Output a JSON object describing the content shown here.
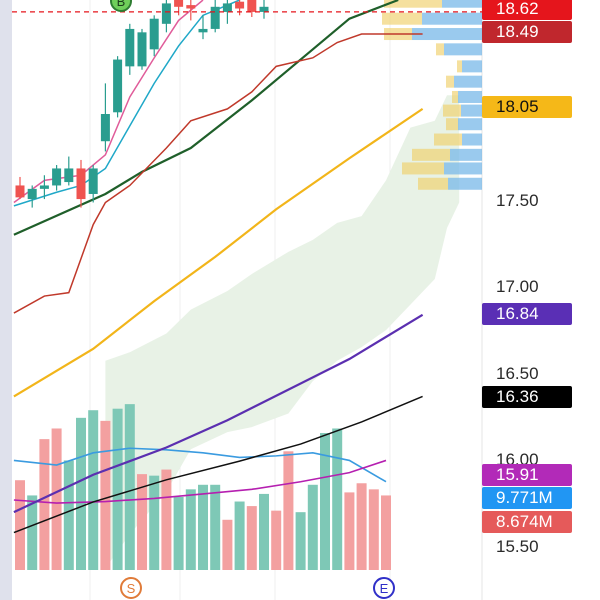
{
  "chart_data": {
    "type": "candlestick",
    "y_axis_side": "right",
    "ylim": [
      15.34,
      18.69
    ],
    "y_ticks": [
      "17.50",
      "17.00",
      "16.50",
      "16.00",
      "15.50"
    ],
    "candles": [
      {
        "o": 17.6,
        "h": 17.65,
        "l": 17.52,
        "c": 17.53
      },
      {
        "o": 17.52,
        "h": 17.6,
        "l": 17.47,
        "c": 17.58
      },
      {
        "o": 17.58,
        "h": 17.66,
        "l": 17.52,
        "c": 17.6
      },
      {
        "o": 17.6,
        "h": 17.72,
        "l": 17.57,
        "c": 17.7
      },
      {
        "o": 17.62,
        "h": 17.77,
        "l": 17.6,
        "c": 17.7
      },
      {
        "o": 17.7,
        "h": 17.75,
        "l": 17.47,
        "c": 17.52
      },
      {
        "o": 17.55,
        "h": 17.72,
        "l": 17.5,
        "c": 17.7
      },
      {
        "o": 17.86,
        "h": 18.2,
        "l": 17.8,
        "c": 18.02
      },
      {
        "o": 18.03,
        "h": 18.36,
        "l": 18.0,
        "c": 18.34
      },
      {
        "o": 18.3,
        "h": 18.55,
        "l": 18.25,
        "c": 18.52
      },
      {
        "o": 18.3,
        "h": 18.52,
        "l": 18.28,
        "c": 18.5
      },
      {
        "o": 18.4,
        "h": 18.6,
        "l": 18.36,
        "c": 18.58
      },
      {
        "o": 18.55,
        "h": 18.69,
        "l": 18.5,
        "c": 18.67
      },
      {
        "o": 18.69,
        "h": 18.69,
        "l": 18.6,
        "c": 18.65
      },
      {
        "o": 18.66,
        "h": 18.69,
        "l": 18.57,
        "c": 18.64
      },
      {
        "o": 18.5,
        "h": 18.6,
        "l": 18.46,
        "c": 18.52
      },
      {
        "o": 18.52,
        "h": 18.69,
        "l": 18.5,
        "c": 18.65
      },
      {
        "o": 18.62,
        "h": 18.69,
        "l": 18.55,
        "c": 18.67
      },
      {
        "o": 18.68,
        "h": 18.69,
        "l": 18.6,
        "c": 18.64
      },
      {
        "o": 18.69,
        "h": 18.69,
        "l": 18.59,
        "c": 18.62
      },
      {
        "o": 18.62,
        "h": 18.69,
        "l": 18.58,
        "c": 18.65
      }
    ],
    "volume": {
      "vmax": 11.5,
      "values": [
        {
          "v": 5.9,
          "up": false
        },
        {
          "v": 4.9,
          "up": true
        },
        {
          "v": 8.6,
          "up": false
        },
        {
          "v": 9.3,
          "up": false
        },
        {
          "v": 7.2,
          "up": true
        },
        {
          "v": 10.0,
          "up": true
        },
        {
          "v": 10.5,
          "up": true
        },
        {
          "v": 9.8,
          "up": false
        },
        {
          "v": 10.6,
          "up": true
        },
        {
          "v": 10.9,
          "up": true
        },
        {
          "v": 6.3,
          "up": false
        },
        {
          "v": 6.2,
          "up": true
        },
        {
          "v": 6.6,
          "up": false
        },
        {
          "v": 4.8,
          "up": true
        },
        {
          "v": 5.3,
          "up": true
        },
        {
          "v": 5.6,
          "up": true
        },
        {
          "v": 5.6,
          "up": true
        },
        {
          "v": 3.3,
          "up": false
        },
        {
          "v": 4.5,
          "up": true
        },
        {
          "v": 4.2,
          "up": false
        },
        {
          "v": 5.0,
          "up": true
        },
        {
          "v": 3.9,
          "up": false
        },
        {
          "v": 7.8,
          "up": false
        },
        {
          "v": 3.8,
          "up": true
        },
        {
          "v": 5.6,
          "up": true
        },
        {
          "v": 9.0,
          "up": true
        },
        {
          "v": 9.3,
          "up": true
        },
        {
          "v": 5.1,
          "up": false
        },
        {
          "v": 5.7,
          "up": false
        },
        {
          "v": 5.3,
          "up": false
        },
        {
          "v": 4.9,
          "up": false
        }
      ]
    },
    "lines": [
      {
        "color": "#1f5f2a",
        "points": [
          [
            -0.5,
            17.31
          ],
          [
            7,
            17.55
          ],
          [
            10,
            17.68
          ],
          [
            14,
            17.82
          ],
          [
            19,
            18.1
          ],
          [
            23,
            18.34
          ],
          [
            27,
            18.58
          ],
          [
            31,
            18.69
          ]
        ]
      },
      {
        "color": "#f2b51a",
        "points": [
          [
            -0.5,
            16.36
          ],
          [
            6,
            16.64
          ],
          [
            11,
            16.92
          ],
          [
            16,
            17.18
          ],
          [
            21,
            17.46
          ],
          [
            27,
            17.76
          ],
          [
            33,
            18.05
          ]
        ]
      },
      {
        "color": "#5b2fb0",
        "points": [
          [
            -0.5,
            15.68
          ],
          [
            6,
            15.9
          ],
          [
            12,
            16.06
          ],
          [
            17,
            16.22
          ],
          [
            22,
            16.4
          ],
          [
            27,
            16.58
          ],
          [
            33,
            16.84
          ]
        ]
      },
      {
        "color": "#111111",
        "points": [
          [
            -0.5,
            15.56
          ],
          [
            6,
            15.74
          ],
          [
            12,
            15.87
          ],
          [
            18,
            15.98
          ],
          [
            23,
            16.08
          ],
          [
            28,
            16.21
          ],
          [
            33,
            16.36
          ]
        ]
      },
      {
        "color": "#c0392b",
        "points": [
          [
            -0.5,
            16.85
          ],
          [
            2,
            16.95
          ],
          [
            4,
            16.97
          ],
          [
            6,
            17.37
          ],
          [
            7,
            17.5
          ],
          [
            9,
            17.6
          ],
          [
            12,
            17.82
          ],
          [
            14,
            17.98
          ],
          [
            17,
            18.05
          ],
          [
            19,
            18.15
          ],
          [
            21,
            18.3
          ],
          [
            24,
            18.35
          ],
          [
            26,
            18.44
          ],
          [
            28,
            18.49
          ],
          [
            33,
            18.49
          ]
        ]
      },
      {
        "color": "#e05c9a",
        "points": [
          [
            -0.5,
            17.5
          ],
          [
            2,
            17.63
          ],
          [
            5,
            17.66
          ],
          [
            7,
            17.78
          ],
          [
            9,
            18.12
          ],
          [
            11,
            18.35
          ],
          [
            13,
            18.57
          ],
          [
            15,
            18.69
          ]
        ]
      },
      {
        "color": "#1fa8c8",
        "points": [
          [
            -0.5,
            17.48
          ],
          [
            3,
            17.56
          ],
          [
            5,
            17.6
          ],
          [
            7,
            17.7
          ],
          [
            9,
            17.95
          ],
          [
            11,
            18.2
          ],
          [
            13,
            18.42
          ],
          [
            15,
            18.6
          ],
          [
            18,
            18.69
          ]
        ]
      }
    ],
    "volume_lines": [
      {
        "color": "#3a9be0",
        "points": [
          [
            -0.5,
            7.2
          ],
          [
            3,
            6.9
          ],
          [
            6,
            7.7
          ],
          [
            9,
            8.0
          ],
          [
            12,
            7.9
          ],
          [
            15,
            7.7
          ],
          [
            18,
            7.4
          ],
          [
            21,
            7.5
          ],
          [
            24,
            7.7
          ],
          [
            27,
            7.2
          ],
          [
            30,
            5.8
          ]
        ]
      },
      {
        "color": "#b51fb0",
        "points": [
          [
            -0.5,
            4.6
          ],
          [
            3,
            4.4
          ],
          [
            7,
            4.5
          ],
          [
            11,
            4.7
          ],
          [
            15,
            5.0
          ],
          [
            19,
            5.3
          ],
          [
            23,
            5.8
          ],
          [
            27,
            6.4
          ],
          [
            30,
            7.2
          ]
        ]
      }
    ],
    "cloud": {
      "x": [
        7,
        9,
        12,
        14,
        17,
        19,
        22,
        24,
        26,
        28,
        30,
        32,
        34,
        35,
        36
      ],
      "upper": [
        16.57,
        16.62,
        16.73,
        16.87,
        16.98,
        17.08,
        17.21,
        17.28,
        17.38,
        17.42,
        17.63,
        17.94,
        17.98,
        18.13,
        18.13
      ],
      "lower": [
        15.35,
        15.55,
        15.8,
        16.05,
        16.15,
        16.18,
        16.26,
        16.45,
        16.57,
        16.65,
        16.75,
        16.9,
        17.05,
        17.35,
        17.5
      ]
    },
    "volume_profile": {
      "levels": [
        18.68,
        18.58,
        18.49,
        18.4,
        18.3,
        18.21,
        18.12,
        18.04,
        17.96,
        17.87,
        17.78,
        17.7,
        17.61
      ],
      "up": [
        40,
        60,
        70,
        38,
        20,
        28,
        24,
        21,
        24,
        20,
        32,
        38,
        34
      ],
      "down": [
        58,
        40,
        28,
        8,
        5,
        8,
        6,
        18,
        12,
        28,
        38,
        42,
        30
      ]
    },
    "dashed_line": 18.62,
    "markers": [
      {
        "x": 4.5,
        "text": "S",
        "color": "#e07b39",
        "band": "bottom"
      },
      {
        "x": 31.5,
        "text": "E",
        "color": "#3030c8",
        "band": "bottom"
      },
      {
        "x": 9.5,
        "text": "B",
        "color": "#2e7d32",
        "band": "top",
        "filled": true
      }
    ],
    "badges": [
      {
        "value": "18.62",
        "bg": "#e5151c",
        "color": "#ffffff"
      },
      {
        "value": "18.49",
        "bg": "#c0272d",
        "color": "#ffffff"
      },
      {
        "value": "18.05",
        "bg": "#f5b818",
        "color": "#111111"
      },
      {
        "value": "16.84",
        "bg": "#5a2fb5",
        "color": "#ffffff"
      },
      {
        "value": "16.36",
        "bg": "#000000",
        "color": "#ffffff"
      },
      {
        "value": "15.91",
        "bg": "#b22ab8",
        "color": "#ffffff"
      },
      {
        "value": "9.771M",
        "bg": "#2196f3",
        "color": "#ffffff"
      },
      {
        "value": "8.674M",
        "bg": "#e55a5a",
        "color": "#ffffff"
      }
    ],
    "colors": {
      "up": "#2a9d8f",
      "down": "#ef5350",
      "vol_up": "#7ec8b6",
      "vol_down": "#f3a0a0",
      "cloud": "#e6f1e3"
    }
  }
}
